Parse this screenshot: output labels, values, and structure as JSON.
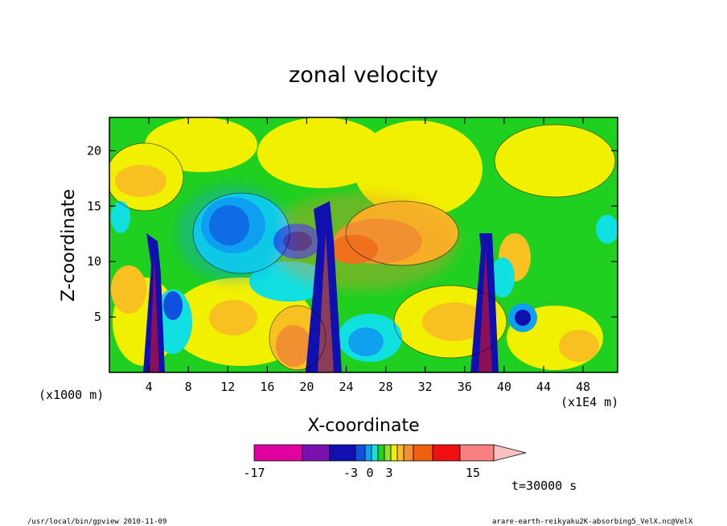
{
  "chart_data": {
    "type": "heatmap",
    "title": "zonal velocity",
    "xlabel": "X-coordinate",
    "ylabel": "Z-coordinate",
    "x_unit_left": "(x1000 m)",
    "x_unit_right": "(x1E4 m)",
    "xticks": [
      "4",
      "8",
      "12",
      "16",
      "20",
      "24",
      "28",
      "32",
      "36",
      "40",
      "44",
      "48"
    ],
    "yticks": [
      "5",
      "10",
      "15",
      "20"
    ],
    "xlim": [
      0,
      51.5
    ],
    "ylim": [
      0,
      23
    ],
    "colorbar": {
      "ticks": [
        "-17",
        "-3",
        "0",
        "3",
        "15"
      ],
      "colors": [
        "#e000a0",
        "#7a10b0",
        "#1010b0",
        "#1050e0",
        "#10a0f0",
        "#10e0e0",
        "#20d020",
        "#90e030",
        "#f0f000",
        "#f8c020",
        "#f09030",
        "#f06010",
        "#f01010",
        "#f88080"
      ]
    },
    "time_label": "t=30000 s",
    "footer_left": "/usr/local/bin/gpview   2010-11-09",
    "footer_right": "arare-earth-reikyaku2K-absorbing5_VelX.nc@VelX",
    "features": [
      {
        "kind": "plume",
        "x": 4.5,
        "color": "navy"
      },
      {
        "kind": "plume",
        "x": 21.5,
        "color": "navy"
      },
      {
        "kind": "plume",
        "x": 38,
        "color": "navy"
      },
      {
        "kind": "region",
        "x": [
          10,
          18
        ],
        "z": [
          6,
          17
        ],
        "value": "negative"
      },
      {
        "kind": "region",
        "x": [
          22,
          33
        ],
        "z": [
          8,
          17
        ],
        "value": "positive"
      }
    ]
  }
}
